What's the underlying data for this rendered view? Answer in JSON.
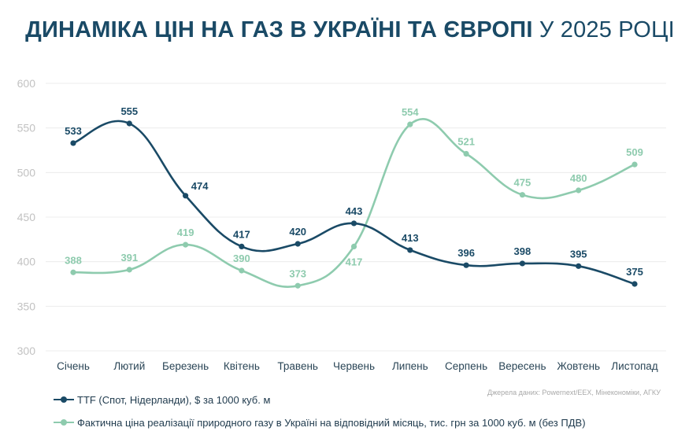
{
  "title": {
    "bold": "ДИНАМІКА ЦІН НА ГАЗ В УКРАЇНІ ТА ЄВРОПІ",
    "light": "У 2025 РОЦІ"
  },
  "source": "Джерела даних: Powernext/EEX, Мінекономіки, АГКУ",
  "colors": {
    "dark": "#1a4a66",
    "light": "#8ecbae",
    "grid": "#ececec",
    "tick": "#c2c2c2",
    "axis_text": "#2a4556"
  },
  "chart_data": {
    "type": "line",
    "categories": [
      "Січень",
      "Лютий",
      "Березень",
      "Квітень",
      "Травень",
      "Червень",
      "Липень",
      "Серпень",
      "Вересень",
      "Жовтень",
      "Листопад"
    ],
    "ylim": [
      300,
      600
    ],
    "yticks": [
      300,
      350,
      400,
      450,
      500,
      550,
      600
    ],
    "grid": true,
    "legend_position": "bottom-left",
    "series": [
      {
        "name": "TTF (Спот, Нідерланди), $ за 1000 куб. м",
        "color": "#1a4a66",
        "values": [
          533,
          555,
          474,
          417,
          420,
          443,
          413,
          396,
          398,
          395,
          375
        ]
      },
      {
        "name": "Фактична ціна реалізації природного газу в Україні на відповідний місяць, тис. грн за 1000 куб. м (без ПДВ)",
        "color": "#8ecbae",
        "values": [
          388,
          391,
          419,
          390,
          373,
          417,
          554,
          521,
          475,
          480,
          509
        ]
      }
    ]
  }
}
